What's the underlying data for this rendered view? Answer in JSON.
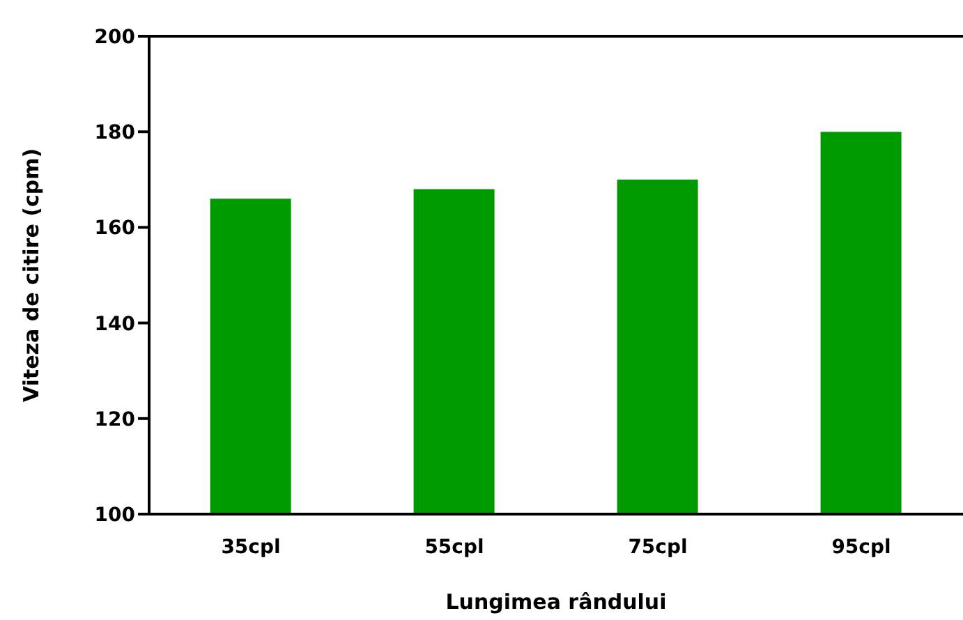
{
  "chart_data": {
    "type": "bar",
    "xlabel": "Lungimea rândului",
    "ylabel": "Viteza de citire (cpm)",
    "categories": [
      "35cpl",
      "55cpl",
      "75cpl",
      "95cpl"
    ],
    "values": [
      166,
      168,
      170,
      180
    ],
    "color": "#009900",
    "ylim": [
      100,
      200
    ],
    "yticks": [
      100,
      120,
      140,
      160,
      180,
      200
    ],
    "grid": false
  }
}
